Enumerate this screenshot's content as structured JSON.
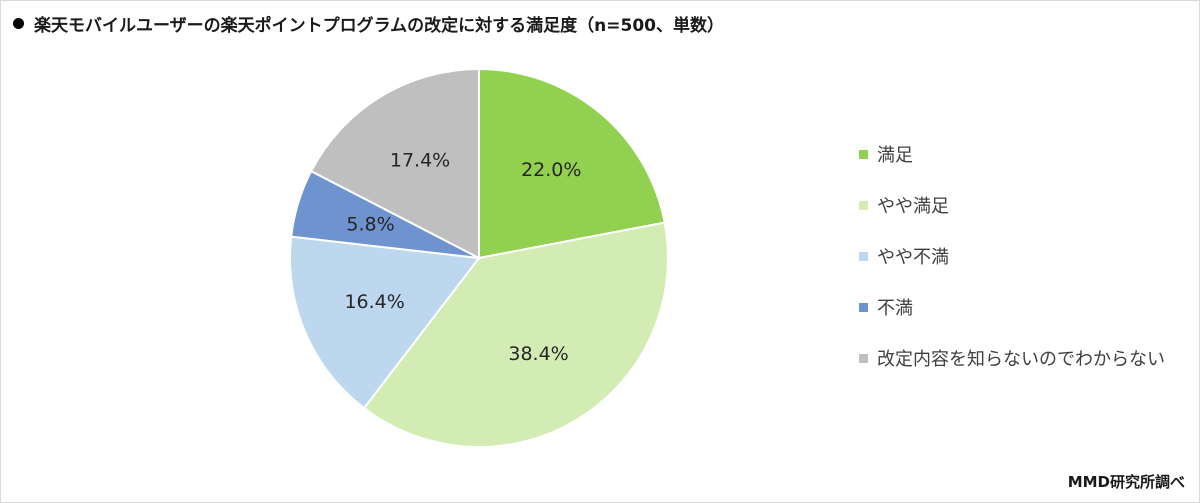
{
  "header": {
    "title": "楽天モバイルユーザーの楽天ポイントプログラムの改定に対する満足度（n=500、単数）"
  },
  "credit": "MMD研究所調べ",
  "chart_data": {
    "type": "pie",
    "title": "楽天モバイルユーザーの楽天ポイントプログラムの改定に対する満足度（n=500、単数）",
    "categories": [
      "満足",
      "やや満足",
      "やや不満",
      "不満",
      "改定内容を知らないのでわからない"
    ],
    "values": [
      22.0,
      38.4,
      16.4,
      5.8,
      17.4
    ],
    "labels": [
      "22.0%",
      "38.4%",
      "16.4%",
      "5.8%",
      "17.4%"
    ],
    "colors": [
      "#92d050",
      "#d2ecb4",
      "#bdd7ee",
      "#6f93cf",
      "#bfbfbf"
    ],
    "start": "12 o'clock",
    "direction": "clockwise",
    "legend_position": "right"
  }
}
